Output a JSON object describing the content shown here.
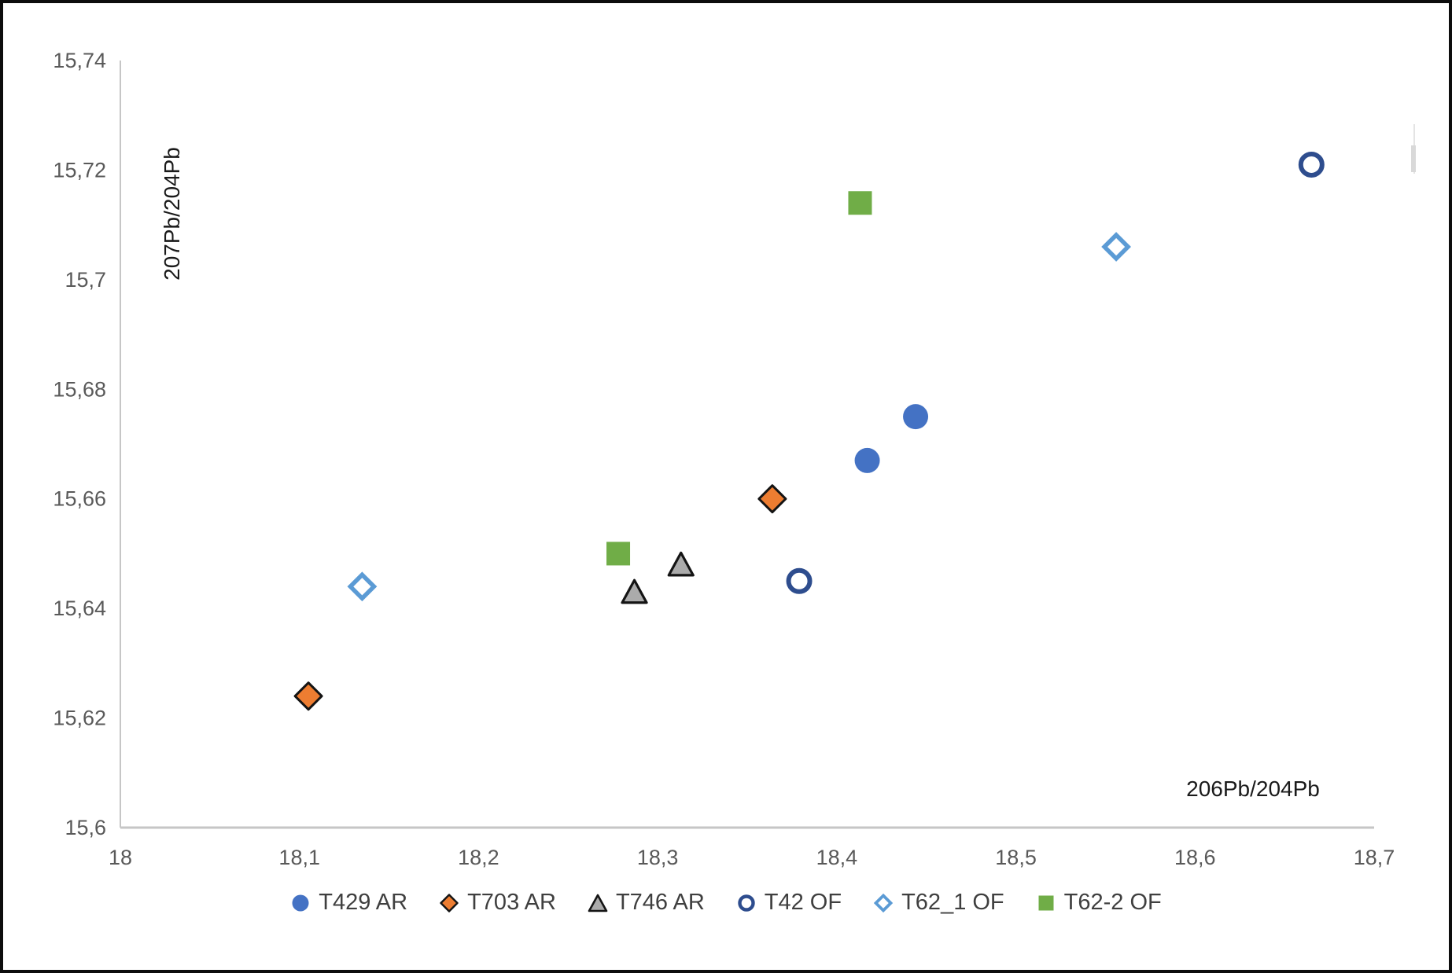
{
  "frame": {
    "border_color": "#0d0d0d",
    "background_color": "#ffffff"
  },
  "axes": {
    "axis_line_color": "#c6c6c6",
    "tick_label_color": "#595959",
    "title_color": "#1a1a1a"
  },
  "legend": {
    "text_color": "#3f3f3f"
  },
  "artifacts": {
    "scrollbar_track_color": "#e4e4e4",
    "scrollbar_thumb_color": "#d9d9d9"
  },
  "chart_data": {
    "type": "scatter",
    "title": "",
    "xlabel": "206Pb/204Pb",
    "ylabel": "207Pb/204Pb",
    "xlim": [
      18.0,
      18.7
    ],
    "ylim": [
      15.6,
      15.74
    ],
    "decimal_separator": ",",
    "grid": false,
    "legend_position": "bottom",
    "x_ticks": [
      18.0,
      18.1,
      18.2,
      18.3,
      18.4,
      18.5,
      18.6,
      18.7
    ],
    "x_tick_labels": [
      "18",
      "18,1",
      "18,2",
      "18,3",
      "18,4",
      "18,5",
      "18,6",
      "18,7"
    ],
    "y_ticks": [
      15.6,
      15.62,
      15.64,
      15.66,
      15.68,
      15.7,
      15.72,
      15.74
    ],
    "y_tick_labels": [
      "15,6",
      "15,62",
      "15,64",
      "15,66",
      "15,68",
      "15,7",
      "15,72",
      "15,74"
    ],
    "series": [
      {
        "name": "T429 AR",
        "marker": "filled-circle",
        "color": "#4472C4",
        "outline": "none",
        "points": [
          [
            18.417,
            15.667
          ],
          [
            18.444,
            15.675
          ]
        ]
      },
      {
        "name": "T703 AR",
        "marker": "filled-diamond",
        "color": "#ED7D31",
        "outline": "#141414",
        "points": [
          [
            18.105,
            15.624
          ],
          [
            18.364,
            15.66
          ]
        ]
      },
      {
        "name": "T746 AR",
        "marker": "filled-triangle",
        "color": "#ABABAB",
        "outline": "#141414",
        "points": [
          [
            18.287,
            15.643
          ],
          [
            18.313,
            15.648
          ]
        ]
      },
      {
        "name": "T42 OF",
        "marker": "open-circle",
        "color": "#2E4D8E",
        "outline": "none",
        "points": [
          [
            18.379,
            15.645
          ],
          [
            18.665,
            15.721
          ]
        ]
      },
      {
        "name": "T62_1 OF",
        "marker": "open-diamond",
        "color": "#5B9BD5",
        "outline": "none",
        "points": [
          [
            18.135,
            15.644
          ],
          [
            18.556,
            15.706
          ]
        ]
      },
      {
        "name": "T62-2 OF",
        "marker": "filled-square",
        "color": "#70AD47",
        "outline": "none",
        "points": [
          [
            18.278,
            15.65
          ],
          [
            18.413,
            15.714
          ]
        ]
      }
    ]
  }
}
